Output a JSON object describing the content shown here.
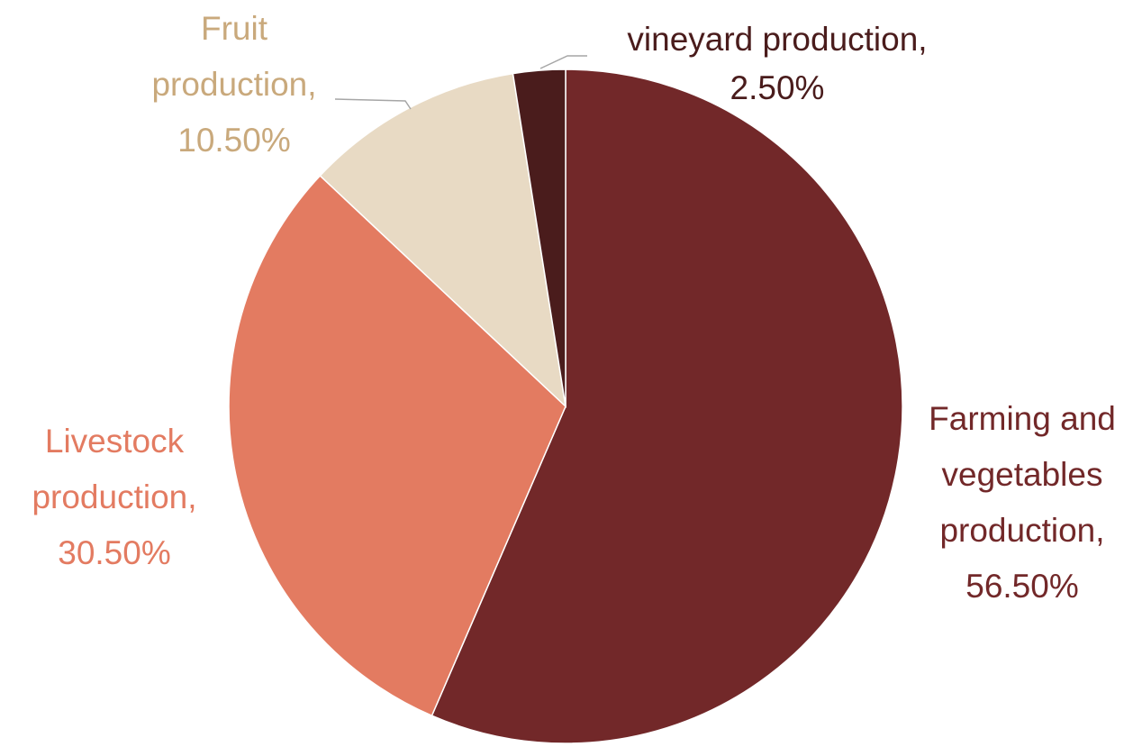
{
  "chart_data": {
    "type": "pie",
    "categories": [
      "Farming and vegetables production,",
      "Livestock production,",
      "Fruit production,",
      "vineyard production,"
    ],
    "values": [
      56.5,
      30.5,
      10.5,
      2.5
    ],
    "value_labels": [
      "56.50%",
      "30.50%",
      "10.50%",
      "2.50%"
    ],
    "colors": [
      "#722829",
      "#e37b61",
      "#e8dac4",
      "#4a1c1c"
    ],
    "label_colors": [
      "#722829",
      "#e37b61",
      "#c9a97c",
      "#4a1c1c"
    ]
  }
}
